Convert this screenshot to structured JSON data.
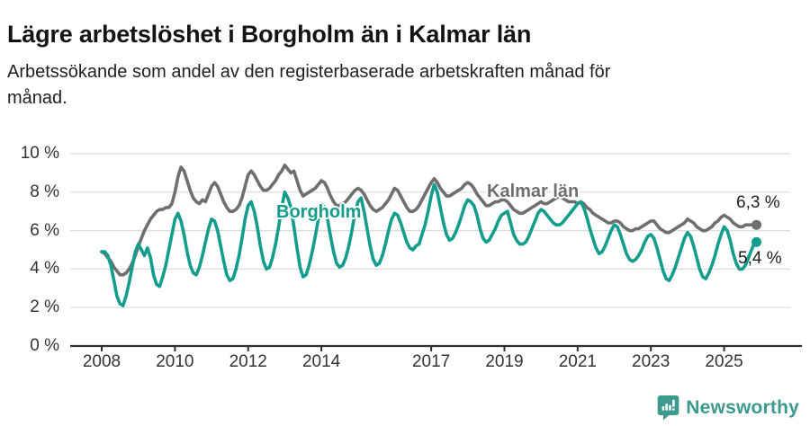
{
  "header": {
    "title": "Lägre arbetslöshet i Borgholm än i Kalmar län",
    "subtitle": "Arbetssökande som andel av den registerbaserade arbetskraften månad för månad."
  },
  "chart_data": {
    "type": "line",
    "title": "Lägre arbetslöshet i Borgholm än i Kalmar län",
    "x_start": "2008-01",
    "x_end": "2025-11",
    "x_unit": "month",
    "ylim": [
      0,
      10
    ],
    "grid": "horizontal",
    "legend_position": "inline-labels",
    "y_ticks": [
      10,
      8,
      6,
      4,
      2,
      0
    ],
    "y_tick_labels": [
      "10 %",
      "8 %",
      "6 %",
      "4 %",
      "2 %",
      "0 %"
    ],
    "x_tick_labels": [
      "2008",
      "2010",
      "2012",
      "2014",
      "2017",
      "2019",
      "2021",
      "2023",
      "2025"
    ],
    "series": [
      {
        "id": "kalmar",
        "name": "Kalmar län",
        "color": "#6f6f6f",
        "end_label": "6,3 %",
        "end_value": 6.3,
        "monthly_values_by_year": {
          "2008": [
            4.9,
            4.8,
            4.6,
            4.4,
            4.1,
            3.9,
            3.7,
            3.7,
            3.8,
            4.0,
            4.3,
            4.7
          ],
          "2009": [
            5.2,
            5.6,
            6.0,
            6.3,
            6.6,
            6.8,
            7.0,
            7.1,
            7.1,
            7.2,
            7.2,
            7.4
          ],
          "2010": [
            8.0,
            8.8,
            9.3,
            9.1,
            8.6,
            8.1,
            7.7,
            7.5,
            7.4,
            7.6,
            7.5,
            7.9
          ],
          "2011": [
            8.3,
            8.5,
            8.3,
            7.9,
            7.5,
            7.2,
            7.0,
            7.0,
            7.1,
            7.3,
            7.7,
            8.3
          ],
          "2012": [
            8.9,
            9.1,
            8.9,
            8.6,
            8.3,
            8.1,
            8.1,
            8.2,
            8.4,
            8.6,
            8.9,
            9.1
          ],
          "2013": [
            9.4,
            9.2,
            9.0,
            9.1,
            8.6,
            8.1,
            7.8,
            7.9,
            8.0,
            8.1,
            8.2,
            8.4
          ],
          "2014": [
            8.6,
            8.5,
            8.2,
            7.8,
            7.5,
            7.3,
            7.3,
            7.4,
            7.5,
            7.7,
            7.9,
            8.1
          ],
          "2015": [
            8.2,
            8.1,
            7.9,
            7.6,
            7.3,
            7.1,
            7.0,
            7.1,
            7.2,
            7.4,
            7.6,
            7.9
          ],
          "2016": [
            8.2,
            8.1,
            7.8,
            7.5,
            7.2,
            7.0,
            7.0,
            7.1,
            7.3,
            7.6,
            7.9,
            8.2
          ],
          "2017": [
            8.5,
            8.7,
            8.5,
            8.2,
            8.0,
            7.8,
            7.8,
            7.9,
            8.0,
            8.1,
            8.2,
            8.4
          ],
          "2018": [
            8.5,
            8.4,
            8.2,
            7.9,
            7.7,
            7.5,
            7.3,
            7.3,
            7.4,
            7.5,
            7.5,
            7.6
          ],
          "2019": [
            7.6,
            7.5,
            7.3,
            7.1,
            7.0,
            6.9,
            6.9,
            7.0,
            7.1,
            7.2,
            7.3,
            7.4
          ],
          "2020": [
            7.5,
            7.4,
            7.4,
            7.5,
            7.6,
            7.7,
            7.8,
            7.7,
            7.6,
            7.5,
            7.5,
            7.5
          ],
          "2021": [
            7.4,
            7.5,
            7.4,
            7.2,
            7.1,
            6.9,
            6.8,
            6.7,
            6.6,
            6.5,
            6.4,
            6.4
          ],
          "2022": [
            6.5,
            6.5,
            6.4,
            6.2,
            6.1,
            6.0,
            6.0,
            6.1,
            6.1,
            6.2,
            6.3,
            6.4
          ],
          "2023": [
            6.5,
            6.5,
            6.3,
            6.1,
            6.0,
            5.9,
            5.9,
            6.0,
            6.1,
            6.2,
            6.3,
            6.4
          ],
          "2024": [
            6.6,
            6.5,
            6.4,
            6.2,
            6.1,
            6.0,
            6.0,
            6.1,
            6.2,
            6.4,
            6.5,
            6.7
          ],
          "2025": [
            6.8,
            6.7,
            6.6,
            6.4,
            6.3,
            6.2,
            6.2,
            6.3,
            6.3,
            6.3,
            6.3
          ]
        }
      },
      {
        "id": "borgholm",
        "name": "Borgholm",
        "color": "#149c8c",
        "end_label": "5,4 %",
        "end_value": 5.4,
        "monthly_values_by_year": {
          "2008": [
            4.9,
            4.9,
            4.7,
            4.2,
            3.4,
            2.6,
            2.2,
            2.1,
            2.6,
            3.3,
            4.1,
            4.9
          ],
          "2009": [
            5.3,
            5.0,
            4.7,
            5.1,
            4.6,
            3.7,
            3.2,
            3.1,
            3.6,
            4.2,
            5.0,
            5.8
          ],
          "2010": [
            6.6,
            6.9,
            6.5,
            5.8,
            4.9,
            4.2,
            3.8,
            3.7,
            4.1,
            4.7,
            5.4,
            6.1
          ],
          "2011": [
            6.6,
            6.5,
            6.0,
            5.2,
            4.4,
            3.7,
            3.4,
            3.5,
            4.0,
            4.7,
            5.6,
            6.6
          ],
          "2012": [
            7.3,
            7.5,
            7.0,
            6.2,
            5.2,
            4.4,
            4.0,
            4.1,
            4.6,
            5.3,
            6.2,
            7.2
          ],
          "2013": [
            8.0,
            7.7,
            7.2,
            6.2,
            5.1,
            4.1,
            3.6,
            3.7,
            4.2,
            4.9,
            5.7,
            6.6
          ],
          "2014": [
            7.4,
            7.2,
            6.6,
            5.7,
            4.9,
            4.3,
            4.1,
            4.2,
            4.6,
            5.2,
            6.0,
            6.9
          ],
          "2015": [
            7.5,
            7.7,
            7.0,
            6.1,
            5.2,
            4.5,
            4.2,
            4.3,
            4.7,
            5.3,
            6.0,
            6.6
          ],
          "2016": [
            6.9,
            6.8,
            6.4,
            5.9,
            5.4,
            5.1,
            5.0,
            5.2,
            5.3,
            5.8,
            6.3,
            7.0
          ],
          "2017": [
            7.8,
            8.4,
            8.0,
            7.2,
            6.4,
            5.8,
            5.5,
            5.6,
            5.9,
            6.3,
            6.8,
            7.3
          ],
          "2018": [
            7.6,
            7.5,
            7.3,
            6.8,
            6.1,
            5.6,
            5.4,
            5.5,
            5.8,
            6.1,
            6.5,
            6.8
          ],
          "2019": [
            6.9,
            7.0,
            6.4,
            5.8,
            5.5,
            5.3,
            5.3,
            5.4,
            5.7,
            6.1,
            6.5,
            6.9
          ],
          "2020": [
            7.1,
            7.0,
            6.8,
            6.6,
            6.4,
            6.3,
            6.3,
            6.4,
            6.6,
            6.8,
            7.0,
            7.2
          ],
          "2021": [
            7.4,
            7.5,
            7.2,
            6.7,
            6.1,
            5.6,
            5.1,
            4.8,
            4.9,
            5.2,
            5.6,
            6.0
          ],
          "2022": [
            6.3,
            6.2,
            5.8,
            5.3,
            4.8,
            4.5,
            4.4,
            4.5,
            4.7,
            5.0,
            5.4,
            5.7
          ],
          "2023": [
            5.8,
            5.6,
            5.1,
            4.5,
            3.9,
            3.5,
            3.4,
            3.7,
            4.1,
            4.6,
            5.1,
            5.6
          ],
          "2024": [
            5.9,
            5.7,
            5.2,
            4.6,
            4.0,
            3.6,
            3.5,
            3.8,
            4.2,
            4.7,
            5.3,
            5.8
          ],
          "2025": [
            6.2,
            6.0,
            5.5,
            4.8,
            4.3,
            4.0,
            4.0,
            4.2,
            4.6,
            5.0,
            5.4
          ]
        }
      }
    ]
  },
  "footer": {
    "brand": "Newsworthy",
    "brand_color": "#3d9a8f",
    "brand_icon": "bar-chart-speech-bubble"
  }
}
